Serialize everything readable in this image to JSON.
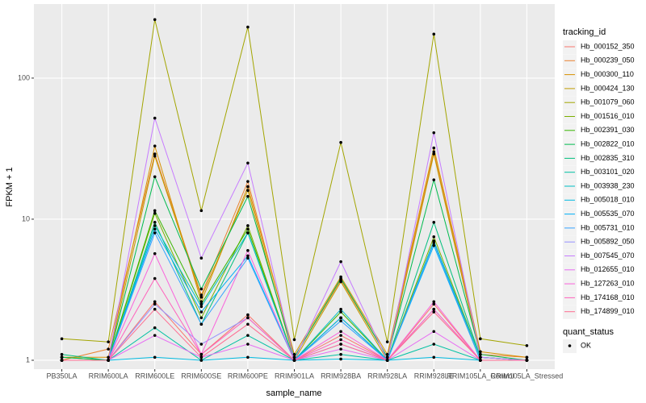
{
  "chart_data": {
    "type": "line",
    "x_label": "sample_name",
    "y_label": "FPKM + 1",
    "categories": [
      "PB350LA",
      "RRIM600LA",
      "RRIM600LE",
      "RRIM600SE",
      "RRIM600PE",
      "RRIM901LA",
      "RRIM928BA",
      "RRIM928LA",
      "RRIM928LE",
      "RRIM105LA_Control",
      "RRIM105LA_Stressed"
    ],
    "log_y": true,
    "ylim": [
      0.865,
      335
    ],
    "yticks": [
      1,
      10,
      100
    ],
    "grid": true,
    "legend_title": "tracking_id",
    "legend_position": "right",
    "series": [
      {
        "name": "Hb_000152_350",
        "color": "#F8766D",
        "values": [
          1,
          1,
          2.6,
          1.1,
          2.1,
          1,
          1.5,
          1,
          2.5,
          1,
          1
        ]
      },
      {
        "name": "Hb_000239_050",
        "color": "#EA8331",
        "values": [
          1,
          1.2,
          29,
          2.9,
          18.5,
          1.05,
          3.7,
          1.05,
          30,
          1.1,
          1.05
        ]
      },
      {
        "name": "Hb_000300_110",
        "color": "#D89000",
        "values": [
          1.05,
          1.05,
          33,
          2.6,
          17,
          1.1,
          3.9,
          1.1,
          32,
          1.15,
          1.05
        ]
      },
      {
        "name": "Hb_000424_130",
        "color": "#C09B00",
        "values": [
          1,
          1,
          28,
          2.8,
          16,
          1,
          3.6,
          1,
          29,
          1.05,
          1
        ]
      },
      {
        "name": "Hb_001079_060",
        "color": "#A3A500",
        "values": [
          1.42,
          1.35,
          260,
          11.5,
          230,
          1.4,
          35,
          1.35,
          205,
          1.42,
          1.27
        ]
      },
      {
        "name": "Hb_001516_010",
        "color": "#7CAE00",
        "values": [
          1.05,
          1,
          11,
          2,
          9,
          1,
          2,
          1,
          7.5,
          1.05,
          1
        ]
      },
      {
        "name": "Hb_002391_030",
        "color": "#39B600",
        "values": [
          1,
          1,
          11.5,
          2.5,
          8.5,
          1,
          2.2,
          1,
          7,
          1,
          1
        ]
      },
      {
        "name": "Hb_002822_010",
        "color": "#00BB4E",
        "values": [
          1.05,
          1,
          20,
          3.2,
          14.5,
          1.05,
          3.8,
          1.05,
          19,
          1.1,
          1
        ]
      },
      {
        "name": "Hb_002835_310",
        "color": "#00BF7D",
        "values": [
          1.1,
          1,
          9.5,
          1.8,
          8,
          1,
          2,
          1,
          9.5,
          1.05,
          1
        ]
      },
      {
        "name": "Hb_003101_020",
        "color": "#00C1A3",
        "values": [
          1,
          1,
          1.7,
          1,
          1.5,
          1,
          1.1,
          1,
          1.3,
          1,
          1
        ]
      },
      {
        "name": "Hb_003938_230",
        "color": "#00BFC4",
        "values": [
          1,
          1,
          9,
          2.4,
          8,
          1,
          2.3,
          1,
          7,
          1.05,
          1
        ]
      },
      {
        "name": "Hb_005018_010",
        "color": "#00BAE0",
        "values": [
          1,
          1,
          1.05,
          1,
          1.05,
          1,
          1.02,
          1,
          1.05,
          1,
          1
        ]
      },
      {
        "name": "Hb_005535_070",
        "color": "#00B0F6",
        "values": [
          1,
          1,
          8.5,
          2.2,
          5.5,
          1,
          2,
          1,
          6.5,
          1,
          1
        ]
      },
      {
        "name": "Hb_005731_010",
        "color": "#35A2FF",
        "values": [
          1,
          1,
          8,
          1.8,
          5.3,
          1,
          1.9,
          1,
          6.8,
          1,
          1
        ]
      },
      {
        "name": "Hb_005892_050",
        "color": "#9590FF",
        "values": [
          1,
          1,
          2.5,
          1.3,
          2,
          1,
          1.3,
          1,
          2.3,
          1,
          1
        ]
      },
      {
        "name": "Hb_007545_070",
        "color": "#C77CFF",
        "values": [
          1,
          1,
          52,
          5.3,
          25,
          1,
          5,
          1,
          41,
          1.05,
          1
        ]
      },
      {
        "name": "Hb_012655_010",
        "color": "#E76BF3",
        "values": [
          1,
          1,
          1.5,
          1.05,
          1.3,
          1,
          1.2,
          1,
          1.6,
          1,
          1
        ]
      },
      {
        "name": "Hb_127263_010",
        "color": "#FA62DB",
        "values": [
          1,
          1,
          5.7,
          1.1,
          6,
          1,
          1.6,
          1,
          2.6,
          1,
          1
        ]
      },
      {
        "name": "Hb_174168_010",
        "color": "#FF62BC",
        "values": [
          1,
          1,
          3.8,
          1.1,
          2,
          1,
          1.4,
          1,
          2.3,
          1,
          1
        ]
      },
      {
        "name": "Hb_174899_010",
        "color": "#FF6C91",
        "values": [
          1,
          1,
          2.3,
          1.05,
          1.8,
          1,
          1.3,
          1,
          2.2,
          1,
          1
        ]
      }
    ],
    "point_legend": {
      "title": "quant_status",
      "labels": [
        "OK"
      ],
      "color": "#000000"
    }
  }
}
